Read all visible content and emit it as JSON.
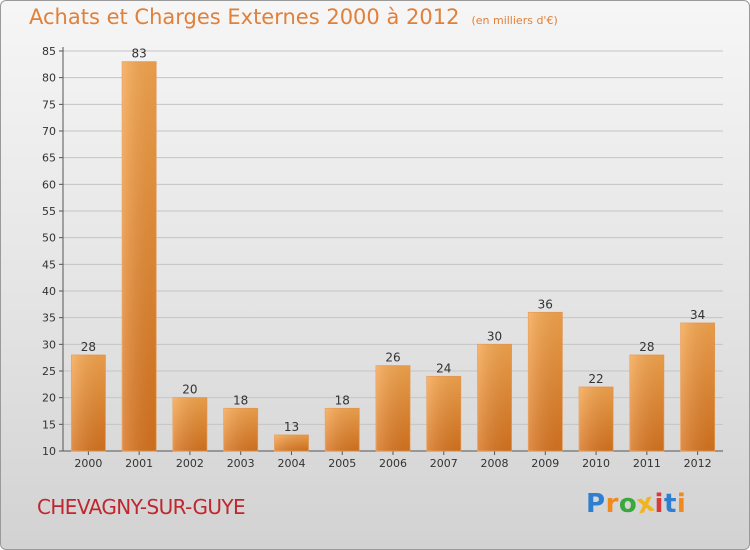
{
  "title": "Achats et Charges Externes 2000 à 2012",
  "subtitle": "(en milliers d'€)",
  "location": "CHEVAGNY-SUR-GUYE",
  "logo": {
    "letters": [
      "P",
      "r",
      "o",
      "x",
      "i",
      "t",
      "i"
    ],
    "colors": [
      "#2f7fd0",
      "#f08a1e",
      "#3aa83a",
      "#f0b51e",
      "#d83a3a",
      "#2f7fd0",
      "#f08a1e"
    ]
  },
  "colors": {
    "bar_light": "#f6a64e",
    "bar_dark": "#d8741f",
    "title": "#e0803a",
    "location": "#c0262f"
  },
  "chart_data": {
    "type": "bar",
    "categories": [
      "2000",
      "2001",
      "2002",
      "2003",
      "2004",
      "2005",
      "2006",
      "2007",
      "2008",
      "2009",
      "2010",
      "2011",
      "2012"
    ],
    "values": [
      28,
      83,
      20,
      18,
      13,
      18,
      26,
      24,
      30,
      36,
      22,
      28,
      34
    ],
    "title": "Achats et Charges Externes 2000 à 2012",
    "subtitle": "(en milliers d'€)",
    "ylim": [
      10,
      85
    ],
    "yticks": [
      10,
      15,
      20,
      25,
      30,
      35,
      40,
      45,
      50,
      55,
      60,
      65,
      70,
      75,
      80,
      85
    ],
    "grid": true,
    "data_labels": true
  }
}
